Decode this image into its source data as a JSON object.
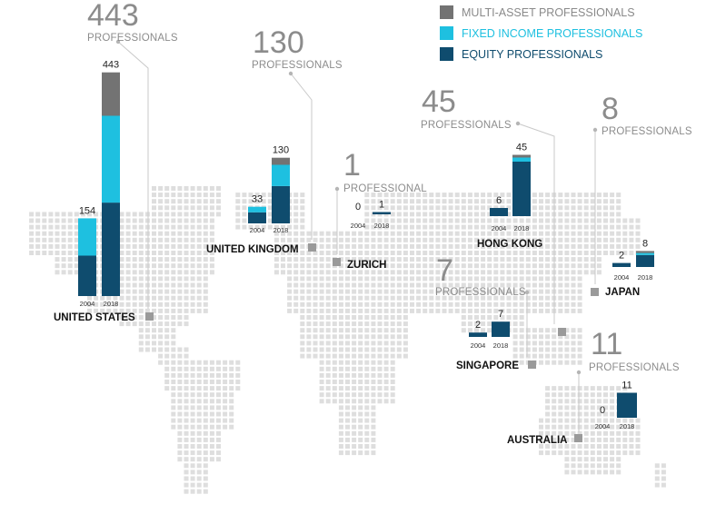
{
  "chart_data": {
    "type": "bar",
    "stacked": true,
    "colors": {
      "multi_asset": "#737373",
      "fixed_income": "#1ec0e0",
      "equity": "#0f4c6e",
      "map_dot": "#dedede",
      "marker": "#9a9a9a",
      "callout_text": "#8c8c8c"
    },
    "legend": [
      {
        "key": "multi_asset",
        "label": "MULTI-ASSET PROFESSIONALS",
        "color": "#737373",
        "text_color": "#8a8a8a"
      },
      {
        "key": "fixed_income",
        "label": "FIXED INCOME PROFESSIONALS",
        "color": "#1ec0e0",
        "text_color": "#1ec0e0"
      },
      {
        "key": "equity",
        "label": "EQUITY PROFESSIONALS",
        "color": "#0f4c6e",
        "text_color": "#0f4c6e"
      }
    ],
    "years": [
      "2004",
      "2018"
    ],
    "locations": [
      {
        "id": "us",
        "name": "UNITED STATES",
        "callout_number": "443",
        "callout_label": "PROFESSIONALS",
        "bars": [
          {
            "year": "2004",
            "total": "154",
            "equity": 80,
            "fixed_income": 74,
            "multi_asset": 0
          },
          {
            "year": "2018",
            "total": "443",
            "equity": 185,
            "fixed_income": 172,
            "multi_asset": 86
          }
        ]
      },
      {
        "id": "uk",
        "name": "UNITED KINGDOM",
        "callout_number": "130",
        "callout_label": "PROFESSIONALS",
        "bars": [
          {
            "year": "2004",
            "total": "33",
            "equity": 22,
            "fixed_income": 11,
            "multi_asset": 0
          },
          {
            "year": "2018",
            "total": "130",
            "equity": 74,
            "fixed_income": 42,
            "multi_asset": 14
          }
        ]
      },
      {
        "id": "zurich",
        "name": "ZURICH",
        "callout_number": "1",
        "callout_label": "PROFESSIONAL",
        "bars": [
          {
            "year": "2004",
            "total": "0",
            "equity": 0,
            "fixed_income": 0,
            "multi_asset": 0
          },
          {
            "year": "2018",
            "total": "1",
            "equity": 1,
            "fixed_income": 0,
            "multi_asset": 0
          }
        ]
      },
      {
        "id": "hk",
        "name": "HONG KONG",
        "callout_number": "45",
        "callout_label": "PROFESSIONALS",
        "bars": [
          {
            "year": "2004",
            "total": "6",
            "equity": 6,
            "fixed_income": 0,
            "multi_asset": 0
          },
          {
            "year": "2018",
            "total": "45",
            "equity": 40,
            "fixed_income": 3,
            "multi_asset": 2
          }
        ]
      },
      {
        "id": "japan",
        "name": "JAPAN",
        "callout_number": "8",
        "callout_label": "PROFESSIONALS",
        "bars": [
          {
            "year": "2004",
            "total": "2",
            "equity": 2,
            "fixed_income": 0,
            "multi_asset": 0
          },
          {
            "year": "2018",
            "total": "8",
            "equity": 6,
            "fixed_income": 1,
            "multi_asset": 1
          }
        ]
      },
      {
        "id": "sg",
        "name": "SINGAPORE",
        "callout_number": "7",
        "callout_label": "PROFESSIONALS",
        "bars": [
          {
            "year": "2004",
            "total": "2",
            "equity": 2,
            "fixed_income": 0,
            "multi_asset": 0
          },
          {
            "year": "2018",
            "total": "7",
            "equity": 7,
            "fixed_income": 0,
            "multi_asset": 0
          }
        ]
      },
      {
        "id": "au",
        "name": "AUSTRALIA",
        "callout_number": "11",
        "callout_label": "PROFESSIONALS",
        "bars": [
          {
            "year": "2004",
            "total": "0",
            "equity": 0,
            "fixed_income": 0,
            "multi_asset": 0
          },
          {
            "year": "2018",
            "total": "11",
            "equity": 11,
            "fixed_income": 0,
            "multi_asset": 0
          }
        ]
      }
    ]
  }
}
